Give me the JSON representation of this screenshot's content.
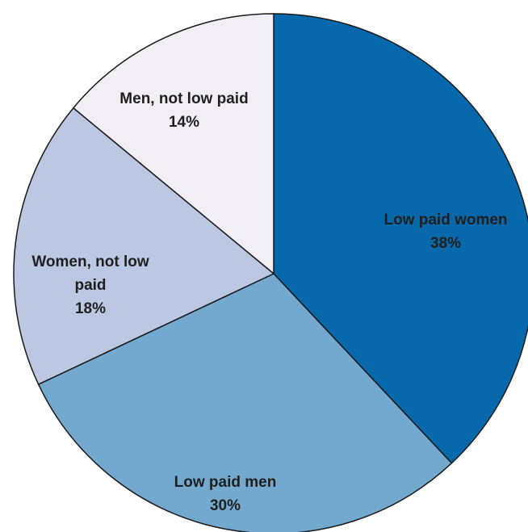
{
  "chart_data": {
    "type": "pie",
    "title": "",
    "start_angle_deg": 0,
    "direction": "clockwise",
    "slices": [
      {
        "label": "Low paid women",
        "value": 38,
        "value_label": "38%",
        "color": "#0868AC"
      },
      {
        "label": "Low paid men",
        "value": 30,
        "value_label": "30%",
        "color": "#74A9CF"
      },
      {
        "label": "Women, not low paid",
        "value": 18,
        "value_label": "18%",
        "color": "#BCC8E2"
      },
      {
        "label": "Men, not low paid",
        "value": 14,
        "value_label": "14%",
        "color": "#F1EEF6"
      }
    ],
    "legend": "none"
  }
}
